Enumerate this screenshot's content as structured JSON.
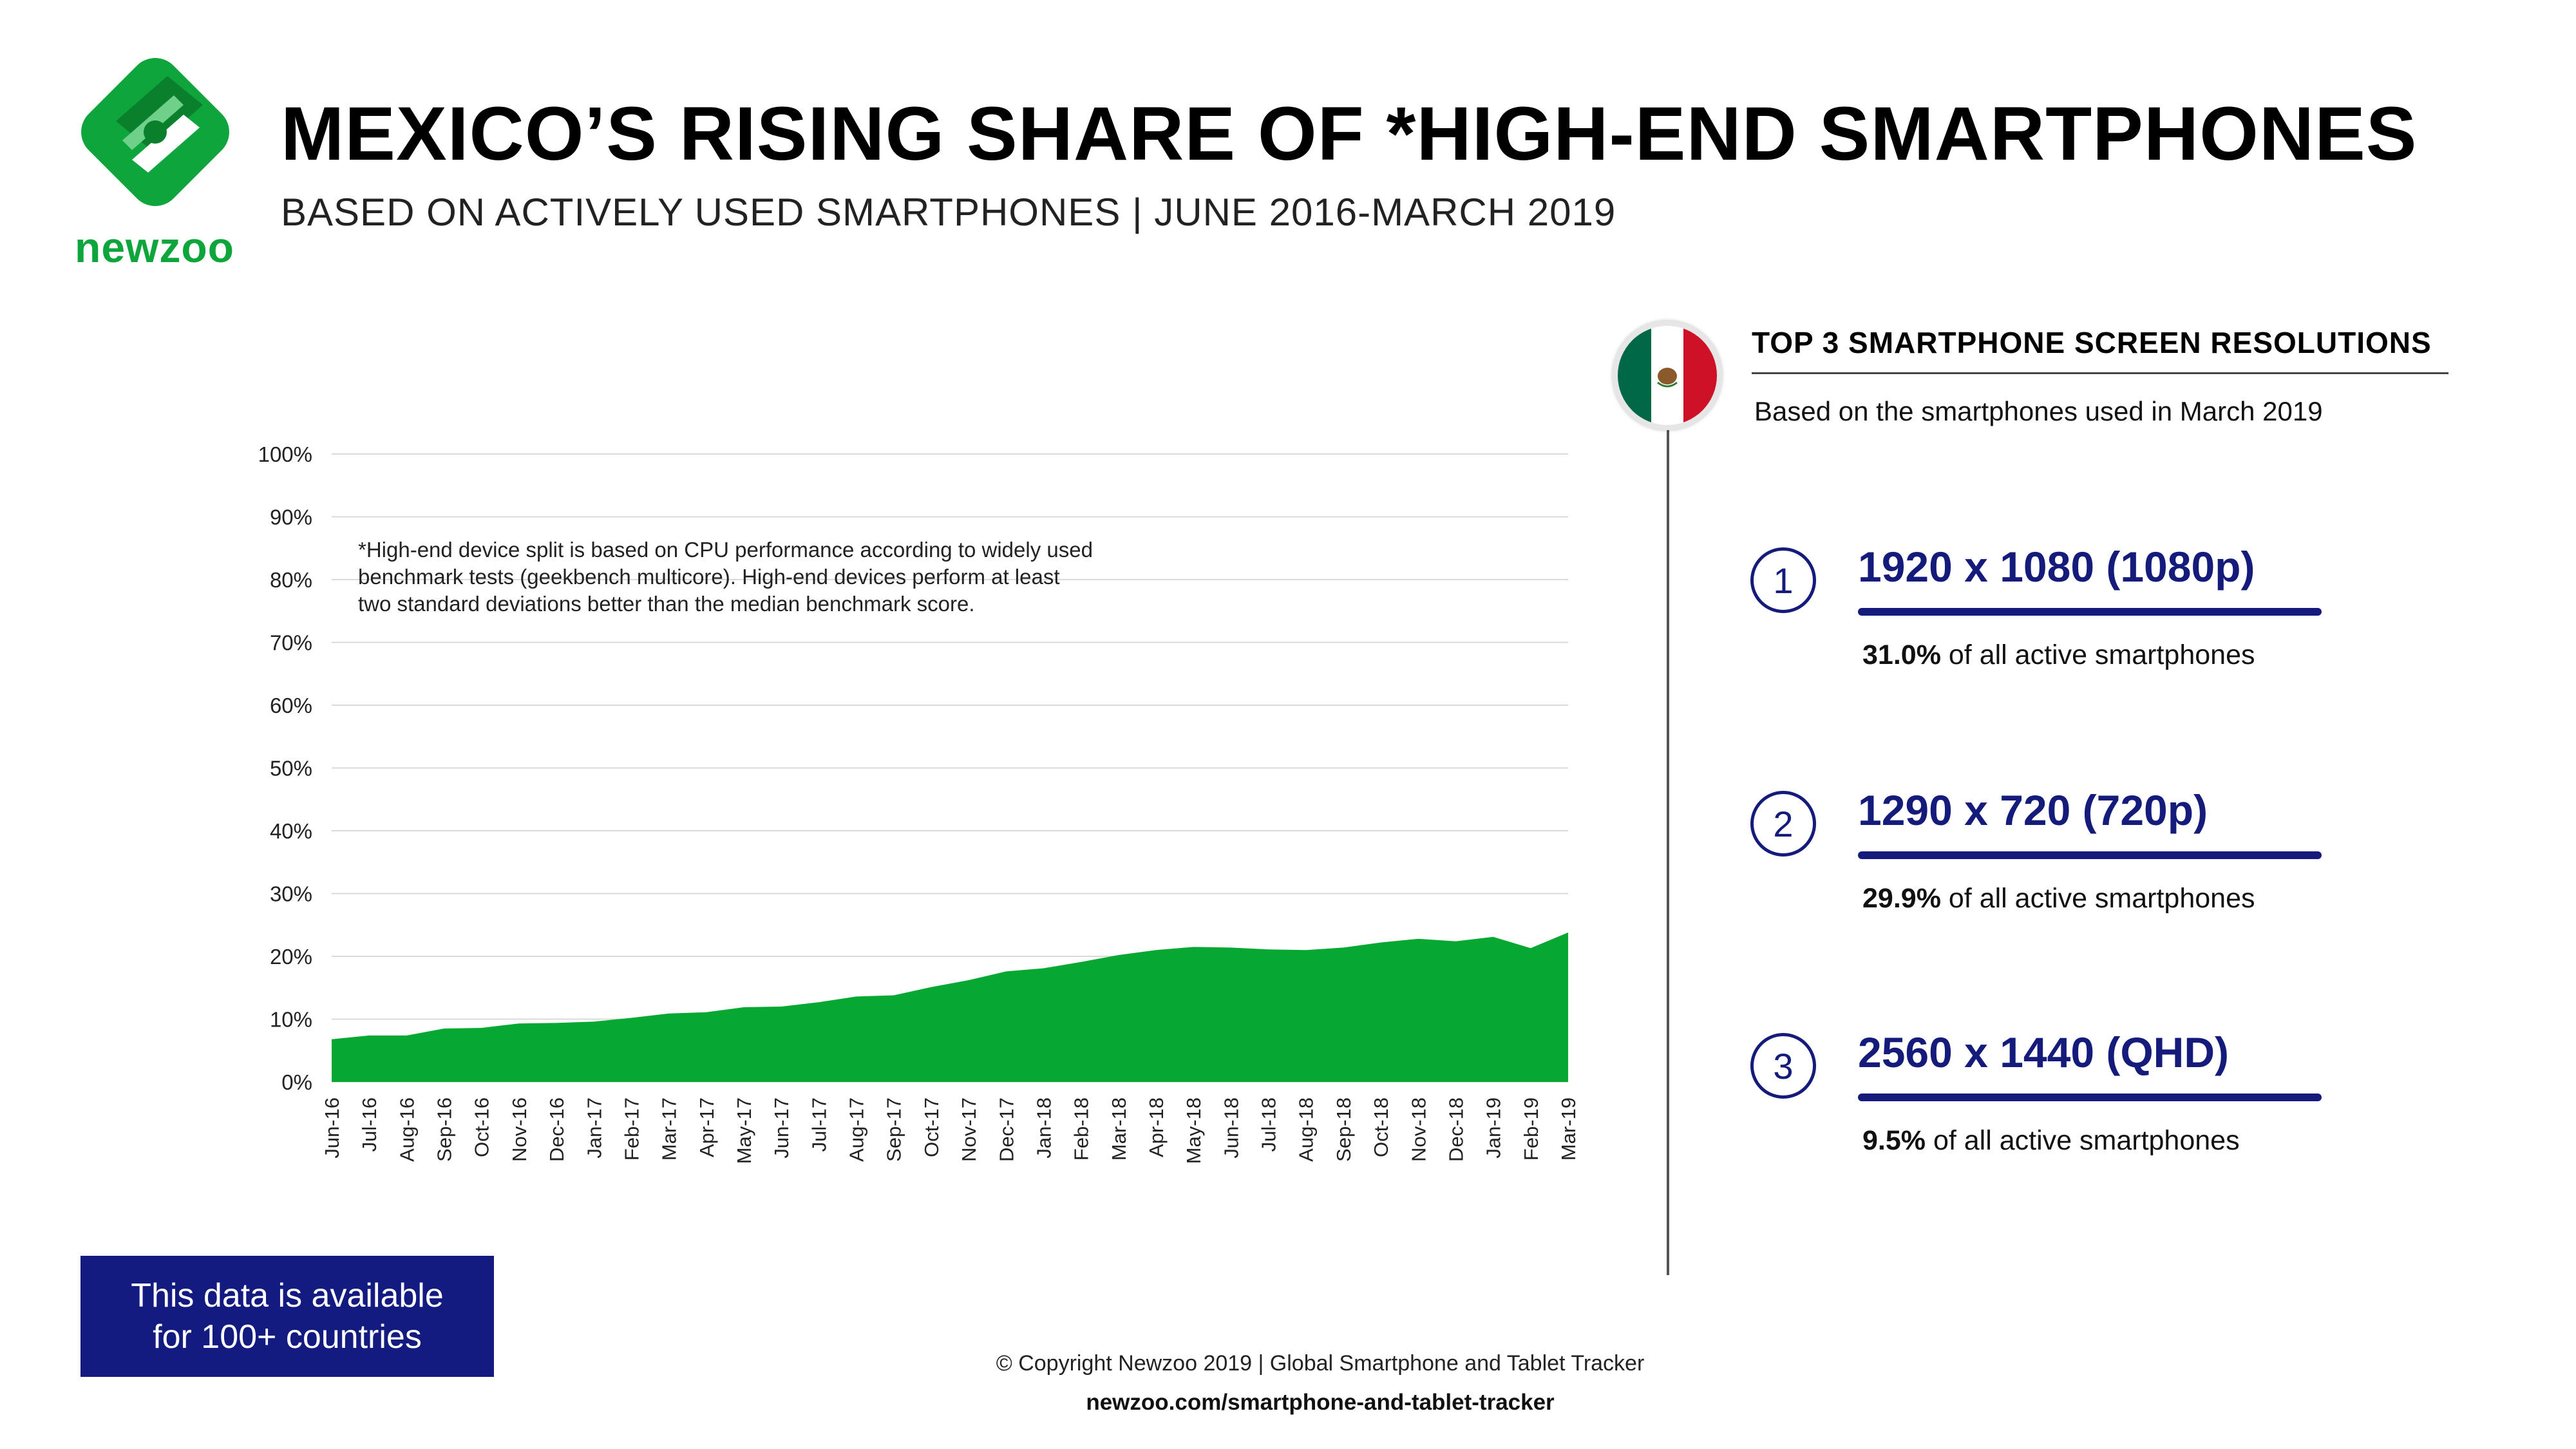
{
  "header": {
    "logo_word": "newzoo",
    "title": "MEXICO’S RISING SHARE OF *HIGH-END SMARTPHONES",
    "subtitle": "BASED ON ACTIVELY USED SMARTPHONES | JUNE 2016-MARCH 2019"
  },
  "colors": {
    "brand_green": "#0ea63c",
    "area_green": "#06a832",
    "navy": "#141b7a",
    "flag_green": "#006847",
    "flag_red": "#ce1126"
  },
  "chart_note": "*High-end device split is based on CPU performance according to widely used benchmark tests (geekbench multicore). High-end devices perform at least two standard deviations better than the median benchmark score.",
  "chart_data": {
    "type": "area",
    "title": "",
    "xlabel": "",
    "ylabel": "",
    "ylim": [
      0,
      100
    ],
    "y_ticks": [
      "0%",
      "10%",
      "20%",
      "30%",
      "40%",
      "50%",
      "60%",
      "70%",
      "80%",
      "90%",
      "100%"
    ],
    "grid": true,
    "categories": [
      "Jun-16",
      "Jul-16",
      "Aug-16",
      "Sep-16",
      "Oct-16",
      "Nov-16",
      "Dec-16",
      "Jan-17",
      "Feb-17",
      "Mar-17",
      "Apr-17",
      "May-17",
      "Jun-17",
      "Jul-17",
      "Aug-17",
      "Sep-17",
      "Oct-17",
      "Nov-17",
      "Dec-17",
      "Jan-18",
      "Feb-18",
      "Mar-18",
      "Apr-18",
      "May-18",
      "Jun-18",
      "Jul-18",
      "Aug-18",
      "Sep-18",
      "Oct-18",
      "Nov-18",
      "Dec-18",
      "Jan-19",
      "Feb-19",
      "Mar-19"
    ],
    "values": [
      6.8,
      7.4,
      7.4,
      8.5,
      8.6,
      9.3,
      9.4,
      9.6,
      10.2,
      10.9,
      11.1,
      11.9,
      12.0,
      12.7,
      13.6,
      13.8,
      15.1,
      16.2,
      17.6,
      18.1,
      19.1,
      20.2,
      21.0,
      21.5,
      21.4,
      21.1,
      21.0,
      21.4,
      22.2,
      22.8,
      22.4,
      23.1,
      21.3,
      23.8
    ]
  },
  "panel": {
    "flag_label": "Mexico",
    "title": "TOP 3 SMARTPHONE SCREEN RESOLUTIONS",
    "subtitle": "Based on the smartphones used in March 2019",
    "share_suffix": " of all active smartphones",
    "items": [
      {
        "rank": "1",
        "resolution": "1920 x 1080 (1080p)",
        "share": "31.0%"
      },
      {
        "rank": "2",
        "resolution": "1290 x 720 (720p)",
        "share": "29.9%"
      },
      {
        "rank": "3",
        "resolution": "2560 x 1440 (QHD)",
        "share": "9.5%"
      }
    ]
  },
  "cta": "This data is available for 100+ countries",
  "footer": {
    "copyright": "© Copyright Newzoo 2019 | Global Smartphone and Tablet Tracker",
    "url": "newzoo.com/smartphone-and-tablet-tracker"
  }
}
